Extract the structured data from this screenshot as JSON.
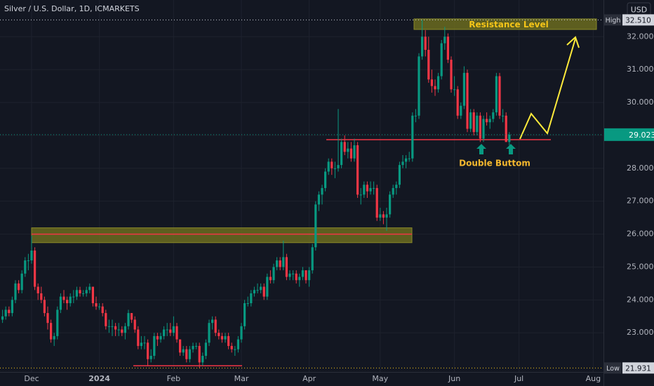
{
  "chart_data": {
    "type": "candlestick",
    "title": "Silver / U.S. Dollar, 1D, ICMARKETS",
    "currency": "USD",
    "up_color": "#089981",
    "down_color": "#f23645",
    "ylim": [
      21.81,
      33.115
    ],
    "yticks": [
      {
        "value": 23,
        "label": "23.000"
      },
      {
        "value": 24,
        "label": "24.000"
      },
      {
        "value": 25,
        "label": "25.000"
      },
      {
        "value": 26,
        "label": "26.000"
      },
      {
        "value": 27,
        "label": "27.000"
      },
      {
        "value": 28,
        "label": "28.000"
      },
      {
        "value": 29,
        "label": "29.000"
      },
      {
        "value": 30,
        "label": "30.000"
      },
      {
        "value": 31,
        "label": "31.000"
      },
      {
        "value": 32,
        "label": "32.000"
      }
    ],
    "price_labels": [
      {
        "name": "High",
        "value": 32.51,
        "label": "32.510"
      },
      {
        "name": "Low",
        "value": 21.931,
        "label": "21.931"
      }
    ],
    "resistance_zone": {
      "label": "Resistance Level",
      "ylim": [
        32.22,
        32.54
      ]
    },
    "support_zone": {
      "ylim": [
        25.74,
        26.19
      ],
      "line": 26.0
    },
    "neckline": {
      "value": 28.87,
      "label": "Double Buttom"
    },
    "base_line": 22.0,
    "categories": [
      null,
      null,
      null,
      null,
      null,
      null,
      null,
      null,
      null,
      "Dec",
      null,
      null,
      null,
      null,
      null,
      null,
      null,
      null,
      null,
      null,
      null,
      null,
      null,
      null,
      null,
      null,
      null,
      null,
      null,
      null,
      "2024",
      null,
      null,
      null,
      null,
      null,
      null,
      null,
      null,
      null,
      null,
      null,
      null,
      null,
      null,
      null,
      null,
      null,
      null,
      null,
      null,
      null,
      null,
      "Feb",
      null,
      null,
      null,
      null,
      null,
      null,
      null,
      null,
      null,
      null,
      null,
      null,
      null,
      null,
      null,
      null,
      null,
      null,
      null,
      null,
      "Mar",
      null,
      null,
      null,
      null,
      null,
      null,
      null,
      null,
      null,
      null,
      null,
      null,
      null,
      null,
      null,
      null,
      null,
      null,
      null,
      null,
      "Apr",
      null,
      null,
      null,
      null,
      null,
      null,
      null,
      null,
      null,
      null,
      null,
      null,
      null,
      null,
      null,
      null,
      null,
      null,
      null,
      null,
      null,
      "May",
      null,
      null,
      null,
      null,
      null,
      null,
      null,
      null,
      null,
      null,
      null,
      null,
      null,
      null,
      null,
      null,
      null,
      null,
      null,
      null,
      null,
      null,
      "Jun",
      null,
      null,
      null,
      null,
      null,
      null,
      null,
      null,
      null,
      null,
      null,
      null,
      null,
      null,
      null,
      null,
      null,
      null,
      null,
      "Jul",
      null,
      null,
      null,
      null,
      null,
      null,
      null,
      null,
      null,
      null,
      null,
      null,
      null,
      null,
      null,
      null,
      null,
      null,
      null,
      null,
      null,
      null,
      "Aug"
    ],
    "ohlc": [
      [
        23.4,
        23.7,
        23.3,
        23.5
      ],
      [
        23.5,
        23.8,
        23.4,
        23.7
      ],
      [
        23.7,
        23.8,
        23.5,
        23.6
      ],
      [
        23.6,
        24.1,
        23.5,
        24.0
      ],
      [
        24.0,
        24.6,
        23.9,
        24.5
      ],
      [
        24.5,
        24.6,
        24.2,
        24.3
      ],
      [
        24.3,
        24.9,
        24.2,
        24.8
      ],
      [
        24.8,
        25.3,
        24.7,
        25.2
      ],
      [
        25.2,
        25.4,
        24.9,
        25.2
      ],
      [
        25.2,
        25.95,
        25.1,
        25.5
      ],
      [
        25.5,
        25.6,
        24.3,
        24.4
      ],
      [
        24.4,
        24.5,
        24.0,
        24.2
      ],
      [
        24.2,
        24.4,
        23.9,
        24.0
      ],
      [
        24.0,
        24.1,
        23.5,
        23.6
      ],
      [
        23.6,
        23.8,
        23.1,
        23.3
      ],
      [
        23.3,
        23.4,
        22.7,
        22.8
      ],
      [
        22.8,
        23.0,
        22.6,
        22.9
      ],
      [
        22.9,
        23.8,
        22.8,
        23.7
      ],
      [
        23.7,
        24.2,
        23.6,
        24.1
      ],
      [
        24.1,
        24.3,
        23.9,
        24.0
      ],
      [
        24.0,
        24.1,
        23.7,
        23.9
      ],
      [
        23.9,
        24.2,
        23.8,
        24.1
      ],
      [
        24.1,
        24.3,
        23.9,
        24.1
      ],
      [
        24.1,
        24.4,
        24.0,
        24.3
      ],
      [
        24.3,
        24.4,
        24.1,
        24.2
      ],
      [
        24.2,
        24.3,
        24.1,
        24.2
      ],
      [
        24.2,
        24.4,
        24.1,
        24.3
      ],
      [
        24.3,
        24.5,
        24.2,
        24.4
      ],
      [
        24.4,
        24.4,
        23.8,
        23.9
      ],
      [
        23.9,
        24.1,
        23.7,
        23.8
      ],
      [
        23.8,
        23.9,
        23.7,
        23.8
      ],
      [
        23.8,
        23.9,
        23.5,
        23.6
      ],
      [
        23.6,
        23.7,
        23.1,
        23.2
      ],
      [
        23.2,
        23.4,
        23.0,
        23.2
      ],
      [
        23.2,
        23.4,
        22.9,
        23.2
      ],
      [
        23.2,
        23.3,
        22.9,
        23.1
      ],
      [
        23.1,
        23.3,
        22.9,
        23.1
      ],
      [
        23.1,
        23.2,
        22.9,
        23.0
      ],
      [
        23.0,
        23.3,
        22.8,
        23.2
      ],
      [
        23.2,
        23.7,
        23.1,
        23.6
      ],
      [
        23.6,
        23.6,
        23.3,
        23.4
      ],
      [
        23.4,
        23.5,
        23.0,
        23.1
      ],
      [
        23.1,
        23.2,
        22.5,
        22.6
      ],
      [
        22.6,
        22.9,
        22.5,
        22.7
      ],
      [
        22.7,
        22.9,
        22.5,
        22.7
      ],
      [
        22.7,
        22.8,
        22.0,
        22.2
      ],
      [
        22.2,
        22.5,
        22.1,
        22.3
      ],
      [
        22.3,
        23.0,
        22.2,
        22.9
      ],
      [
        22.9,
        23.0,
        22.6,
        22.8
      ],
      [
        22.8,
        23.0,
        22.7,
        22.9
      ],
      [
        22.9,
        23.2,
        22.8,
        23.1
      ],
      [
        23.1,
        23.3,
        22.9,
        23.1
      ],
      [
        23.1,
        23.3,
        22.9,
        23.0
      ],
      [
        23.0,
        23.5,
        22.9,
        23.2
      ],
      [
        23.2,
        23.3,
        22.7,
        22.8
      ],
      [
        22.8,
        22.8,
        22.3,
        22.4
      ],
      [
        22.4,
        22.6,
        22.3,
        22.5
      ],
      [
        22.5,
        22.6,
        22.1,
        22.2
      ],
      [
        22.2,
        22.6,
        22.1,
        22.5
      ],
      [
        22.5,
        22.7,
        22.4,
        22.6
      ],
      [
        22.6,
        22.7,
        22.5,
        22.6
      ],
      [
        22.6,
        22.7,
        21.931,
        22.1
      ],
      [
        22.1,
        22.4,
        22.0,
        22.3
      ],
      [
        22.3,
        22.8,
        22.2,
        22.7
      ],
      [
        22.7,
        23.4,
        22.6,
        23.3
      ],
      [
        23.3,
        23.5,
        23.1,
        23.4
      ],
      [
        23.4,
        23.5,
        22.9,
        23.0
      ],
      [
        23.0,
        23.1,
        22.8,
        22.9
      ],
      [
        22.9,
        23.0,
        22.7,
        22.8
      ],
      [
        22.8,
        23.0,
        22.7,
        22.9
      ],
      [
        22.9,
        23.0,
        22.5,
        22.6
      ],
      [
        22.6,
        22.7,
        22.4,
        22.5
      ],
      [
        22.5,
        22.6,
        22.3,
        22.5
      ],
      [
        22.5,
        22.9,
        22.4,
        22.8
      ],
      [
        22.8,
        23.3,
        22.7,
        23.2
      ],
      [
        23.2,
        24.0,
        23.1,
        23.9
      ],
      [
        23.9,
        24.1,
        23.8,
        23.9
      ],
      [
        23.9,
        24.3,
        23.8,
        24.2
      ],
      [
        24.2,
        24.4,
        24.1,
        24.3
      ],
      [
        24.3,
        24.5,
        24.2,
        24.3
      ],
      [
        24.3,
        24.5,
        24.2,
        24.4
      ],
      [
        24.4,
        24.5,
        24.0,
        24.1
      ],
      [
        24.1,
        24.8,
        24.0,
        24.7
      ],
      [
        24.7,
        24.9,
        24.5,
        24.6
      ],
      [
        24.6,
        25.1,
        24.5,
        25.0
      ],
      [
        25.0,
        25.3,
        24.9,
        25.2
      ],
      [
        25.2,
        25.3,
        24.9,
        25.0
      ],
      [
        25.0,
        25.8,
        24.9,
        25.3
      ],
      [
        25.3,
        25.4,
        24.6,
        24.7
      ],
      [
        24.7,
        24.9,
        24.6,
        24.8
      ],
      [
        24.8,
        24.9,
        24.6,
        24.8
      ],
      [
        24.8,
        24.9,
        24.5,
        24.6
      ],
      [
        24.6,
        24.8,
        24.4,
        24.7
      ],
      [
        24.7,
        25.0,
        24.6,
        24.9
      ],
      [
        24.9,
        24.9,
        24.5,
        24.6
      ],
      [
        24.6,
        25.0,
        24.4,
        24.9
      ],
      [
        24.9,
        25.7,
        24.8,
        25.6
      ],
      [
        25.6,
        27.0,
        25.5,
        26.9
      ],
      [
        26.9,
        27.3,
        26.7,
        27.2
      ],
      [
        27.2,
        27.5,
        26.9,
        27.4
      ],
      [
        27.4,
        28.0,
        27.3,
        27.9
      ],
      [
        27.9,
        28.3,
        27.8,
        28.2
      ],
      [
        28.2,
        28.3,
        27.8,
        28.0
      ],
      [
        28.0,
        28.2,
        27.7,
        28.0
      ],
      [
        28.0,
        29.8,
        27.9,
        28.1
      ],
      [
        28.1,
        28.9,
        28.0,
        28.8
      ],
      [
        28.8,
        29.0,
        28.4,
        28.5
      ],
      [
        28.5,
        28.8,
        28.3,
        28.6
      ],
      [
        28.6,
        28.8,
        28.2,
        28.3
      ],
      [
        28.3,
        28.9,
        28.2,
        28.7
      ],
      [
        28.7,
        28.8,
        27.1,
        27.2
      ],
      [
        27.2,
        27.4,
        26.9,
        27.2
      ],
      [
        27.2,
        27.6,
        27.1,
        27.5
      ],
      [
        27.5,
        27.6,
        27.1,
        27.3
      ],
      [
        27.3,
        27.6,
        27.2,
        27.4
      ],
      [
        27.4,
        27.6,
        27.2,
        27.4
      ],
      [
        27.4,
        27.5,
        26.4,
        26.5
      ],
      [
        26.5,
        26.8,
        26.4,
        26.6
      ],
      [
        26.6,
        26.7,
        26.3,
        26.5
      ],
      [
        26.5,
        26.8,
        26.1,
        26.6
      ],
      [
        26.6,
        27.3,
        26.5,
        27.2
      ],
      [
        27.2,
        27.5,
        27.1,
        27.4
      ],
      [
        27.4,
        27.6,
        27.2,
        27.5
      ],
      [
        27.5,
        28.2,
        27.4,
        28.1
      ],
      [
        28.1,
        28.4,
        28.0,
        28.2
      ],
      [
        28.2,
        28.4,
        28.0,
        28.3
      ],
      [
        28.3,
        28.5,
        28.2,
        28.3
      ],
      [
        28.3,
        29.7,
        28.2,
        29.6
      ],
      [
        29.6,
        29.8,
        29.4,
        29.6
      ],
      [
        29.6,
        31.5,
        29.5,
        31.4
      ],
      [
        31.4,
        32.51,
        31.3,
        32.0
      ],
      [
        32.0,
        32.2,
        31.4,
        31.6
      ],
      [
        31.6,
        32.0,
        30.6,
        30.7
      ],
      [
        30.7,
        31.0,
        30.3,
        30.5
      ],
      [
        30.5,
        30.7,
        30.2,
        30.4
      ],
      [
        30.4,
        30.9,
        30.3,
        30.8
      ],
      [
        30.8,
        31.9,
        30.7,
        31.8
      ],
      [
        31.8,
        32.3,
        31.6,
        32.0
      ],
      [
        32.0,
        32.1,
        31.2,
        31.3
      ],
      [
        31.3,
        31.4,
        30.3,
        30.4
      ],
      [
        30.4,
        30.8,
        30.2,
        30.4
      ],
      [
        30.4,
        30.5,
        29.5,
        29.6
      ],
      [
        29.6,
        30.0,
        29.5,
        29.9
      ],
      [
        29.9,
        31.1,
        29.8,
        30.9
      ],
      [
        30.9,
        31.0,
        29.1,
        29.2
      ],
      [
        29.2,
        29.8,
        29.1,
        29.7
      ],
      [
        29.7,
        29.8,
        29.0,
        29.1
      ],
      [
        29.1,
        29.7,
        29.0,
        29.6
      ],
      [
        29.6,
        29.7,
        28.8,
        28.9
      ],
      [
        28.9,
        29.6,
        28.8,
        29.5
      ],
      [
        29.5,
        29.7,
        29.3,
        29.4
      ],
      [
        29.4,
        29.6,
        29.2,
        29.5
      ],
      [
        29.5,
        29.8,
        29.4,
        29.7
      ],
      [
        29.7,
        30.9,
        29.6,
        30.8
      ],
      [
        30.8,
        30.9,
        29.5,
        29.6
      ],
      [
        29.6,
        29.8,
        29.4,
        29.6
      ],
      [
        29.6,
        29.7,
        28.8,
        28.8
      ],
      [
        28.8,
        29.1,
        28.7,
        29.023
      ],
      null,
      null,
      null,
      null,
      null,
      null,
      null,
      null,
      null,
      null,
      null,
      null,
      null,
      null,
      null,
      null,
      null,
      null,
      null,
      null,
      null,
      null,
      null,
      null,
      null,
      null
    ]
  }
}
